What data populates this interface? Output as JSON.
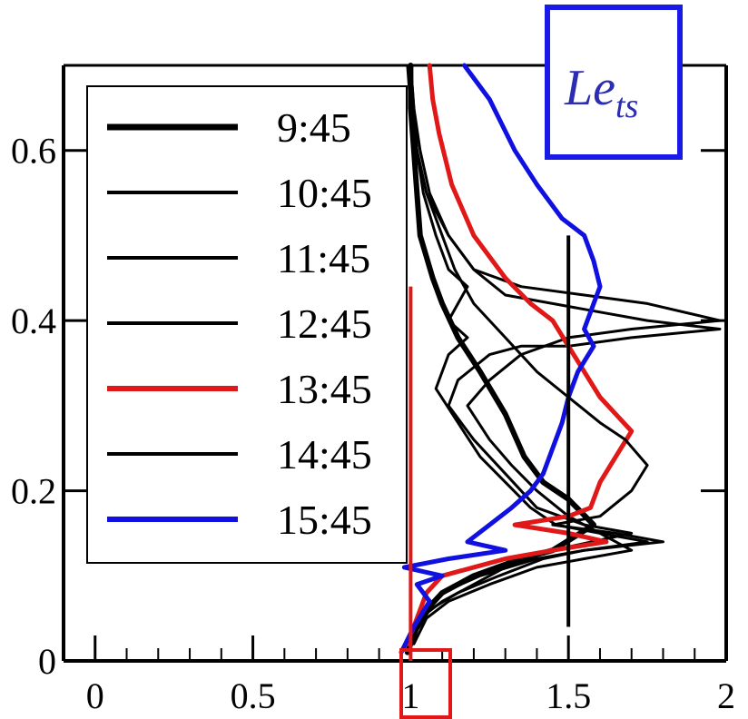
{
  "chart_data": {
    "type": "line",
    "title_main": "Le",
    "title_sub": "ts",
    "xlabel": "",
    "ylabel": "",
    "xlim": [
      -0.1,
      2
    ],
    "ylim": [
      0,
      0.7
    ],
    "x_ticks": [
      0,
      0.5,
      1,
      1.5,
      2
    ],
    "x_tick_labels": [
      "0",
      "0.5",
      "1",
      "1.5",
      "2"
    ],
    "y_ticks": [
      0,
      0.2,
      0.4,
      0.6
    ],
    "y_tick_labels": [
      "0",
      "0.2",
      "0.4",
      "0.6"
    ],
    "grid": false,
    "legend_position": "top-left",
    "colors": {
      "black": "#000000",
      "red": "#e01818",
      "blue": "#1010e0",
      "title_box": "#1a1ae6",
      "highlight_box": "#e01818"
    },
    "series": [
      {
        "name": "9:45",
        "color": "#000000",
        "width": 6,
        "points": [
          [
            1.0,
            0.7
          ],
          [
            1.0,
            0.65
          ],
          [
            1.01,
            0.6
          ],
          [
            1.02,
            0.55
          ],
          [
            1.03,
            0.5
          ],
          [
            1.07,
            0.45
          ],
          [
            1.1,
            0.42
          ],
          [
            1.15,
            0.38
          ],
          [
            1.22,
            0.34
          ],
          [
            1.3,
            0.29
          ],
          [
            1.36,
            0.24
          ],
          [
            1.42,
            0.21
          ],
          [
            1.5,
            0.19
          ],
          [
            1.58,
            0.16
          ],
          [
            1.45,
            0.13
          ],
          [
            1.35,
            0.12
          ],
          [
            1.2,
            0.1
          ],
          [
            1.1,
            0.08
          ],
          [
            1.05,
            0.06
          ],
          [
            1.02,
            0.04
          ],
          [
            1.0,
            0.02
          ],
          [
            0.99,
            0.01
          ]
        ]
      },
      {
        "name": "10:45",
        "color": "#000000",
        "width": 3,
        "points": [
          [
            0.99,
            0.7
          ],
          [
            1.0,
            0.65
          ],
          [
            1.02,
            0.6
          ],
          [
            1.05,
            0.55
          ],
          [
            1.12,
            0.5
          ],
          [
            1.2,
            0.46
          ],
          [
            1.3,
            0.43
          ],
          [
            1.45,
            0.42
          ],
          [
            1.6,
            0.41
          ],
          [
            1.75,
            0.4
          ],
          [
            1.98,
            0.39
          ],
          [
            1.7,
            0.38
          ],
          [
            1.5,
            0.37
          ],
          [
            1.35,
            0.37
          ],
          [
            1.25,
            0.36
          ],
          [
            1.15,
            0.33
          ],
          [
            1.12,
            0.3
          ],
          [
            1.2,
            0.26
          ],
          [
            1.3,
            0.22
          ],
          [
            1.4,
            0.18
          ],
          [
            1.55,
            0.16
          ],
          [
            1.7,
            0.15
          ],
          [
            1.45,
            0.13
          ],
          [
            1.3,
            0.11
          ],
          [
            1.2,
            0.09
          ],
          [
            1.1,
            0.07
          ],
          [
            1.03,
            0.05
          ],
          [
            1.0,
            0.02
          ]
        ]
      },
      {
        "name": "11:45",
        "color": "#000000",
        "width": 3,
        "points": [
          [
            1.0,
            0.7
          ],
          [
            1.01,
            0.65
          ],
          [
            1.03,
            0.6
          ],
          [
            1.06,
            0.55
          ],
          [
            1.12,
            0.5
          ],
          [
            1.2,
            0.46
          ],
          [
            1.35,
            0.44
          ],
          [
            1.55,
            0.43
          ],
          [
            1.75,
            0.42
          ],
          [
            1.98,
            0.4
          ],
          [
            1.7,
            0.39
          ],
          [
            1.5,
            0.38
          ],
          [
            1.35,
            0.36
          ],
          [
            1.25,
            0.33
          ],
          [
            1.18,
            0.3
          ],
          [
            1.25,
            0.26
          ],
          [
            1.32,
            0.23
          ],
          [
            1.4,
            0.2
          ],
          [
            1.5,
            0.17
          ],
          [
            1.6,
            0.15
          ],
          [
            1.7,
            0.13
          ],
          [
            1.55,
            0.12
          ],
          [
            1.4,
            0.11
          ],
          [
            1.25,
            0.09
          ],
          [
            1.12,
            0.07
          ],
          [
            1.05,
            0.05
          ],
          [
            1.01,
            0.02
          ]
        ]
      },
      {
        "name": "12:45",
        "color": "#000000",
        "width": 3,
        "points": [
          [
            1.0,
            0.7
          ],
          [
            1.01,
            0.65
          ],
          [
            1.02,
            0.6
          ],
          [
            1.04,
            0.55
          ],
          [
            1.08,
            0.5
          ],
          [
            1.12,
            0.46
          ],
          [
            1.18,
            0.44
          ],
          [
            1.15,
            0.42
          ],
          [
            1.12,
            0.4
          ],
          [
            1.18,
            0.38
          ],
          [
            1.12,
            0.36
          ],
          [
            1.08,
            0.32
          ],
          [
            1.15,
            0.28
          ],
          [
            1.22,
            0.24
          ],
          [
            1.3,
            0.21
          ],
          [
            1.38,
            0.18
          ],
          [
            1.46,
            0.16
          ],
          [
            1.6,
            0.15
          ],
          [
            1.75,
            0.14
          ],
          [
            1.55,
            0.13
          ],
          [
            1.4,
            0.12
          ],
          [
            1.22,
            0.1
          ],
          [
            1.1,
            0.08
          ],
          [
            1.04,
            0.06
          ],
          [
            1.0,
            0.03
          ]
        ]
      },
      {
        "name": "13:45",
        "color": "#e01818",
        "width": 5,
        "points": [
          [
            1.06,
            0.7
          ],
          [
            1.07,
            0.66
          ],
          [
            1.09,
            0.62
          ],
          [
            1.13,
            0.56
          ],
          [
            1.2,
            0.5
          ],
          [
            1.3,
            0.45
          ],
          [
            1.38,
            0.42
          ],
          [
            1.45,
            0.4
          ],
          [
            1.5,
            0.37
          ],
          [
            1.55,
            0.34
          ],
          [
            1.6,
            0.31
          ],
          [
            1.65,
            0.29
          ],
          [
            1.7,
            0.27
          ],
          [
            1.65,
            0.24
          ],
          [
            1.6,
            0.21
          ],
          [
            1.57,
            0.18
          ],
          [
            1.5,
            0.17
          ],
          [
            1.33,
            0.16
          ],
          [
            1.5,
            0.15
          ],
          [
            1.62,
            0.14
          ],
          [
            1.45,
            0.13
          ],
          [
            1.3,
            0.12
          ],
          [
            1.2,
            0.11
          ],
          [
            1.1,
            0.1
          ],
          [
            1.05,
            0.08
          ],
          [
            1.02,
            0.05
          ],
          [
            0.99,
            0.02
          ]
        ]
      },
      {
        "name": "14:45",
        "color": "#000000",
        "width": 3,
        "points": [
          [
            1.0,
            0.7
          ],
          [
            1.0,
            0.65
          ],
          [
            1.02,
            0.6
          ],
          [
            1.05,
            0.55
          ],
          [
            1.1,
            0.5
          ],
          [
            1.14,
            0.46
          ],
          [
            1.2,
            0.42
          ],
          [
            1.3,
            0.38
          ],
          [
            1.4,
            0.34
          ],
          [
            1.5,
            0.31
          ],
          [
            1.6,
            0.28
          ],
          [
            1.68,
            0.26
          ],
          [
            1.75,
            0.23
          ],
          [
            1.7,
            0.2
          ],
          [
            1.6,
            0.17
          ],
          [
            1.45,
            0.16
          ],
          [
            1.65,
            0.15
          ],
          [
            1.8,
            0.14
          ],
          [
            1.55,
            0.13
          ],
          [
            1.42,
            0.12
          ],
          [
            1.28,
            0.1
          ],
          [
            1.15,
            0.08
          ],
          [
            1.06,
            0.06
          ],
          [
            1.01,
            0.03
          ]
        ]
      },
      {
        "name": "15:45",
        "color": "#1010e0",
        "width": 5,
        "points": [
          [
            1.17,
            0.7
          ],
          [
            1.25,
            0.66
          ],
          [
            1.33,
            0.6
          ],
          [
            1.4,
            0.56
          ],
          [
            1.48,
            0.52
          ],
          [
            1.55,
            0.5
          ],
          [
            1.58,
            0.47
          ],
          [
            1.6,
            0.44
          ],
          [
            1.58,
            0.42
          ],
          [
            1.55,
            0.39
          ],
          [
            1.58,
            0.37
          ],
          [
            1.53,
            0.34
          ],
          [
            1.5,
            0.31
          ],
          [
            1.48,
            0.28
          ],
          [
            1.45,
            0.25
          ],
          [
            1.42,
            0.22
          ],
          [
            1.38,
            0.2
          ],
          [
            1.32,
            0.18
          ],
          [
            1.25,
            0.16
          ],
          [
            1.18,
            0.14
          ],
          [
            1.3,
            0.13
          ],
          [
            1.12,
            0.12
          ],
          [
            0.98,
            0.11
          ],
          [
            1.1,
            0.1
          ],
          [
            1.02,
            0.09
          ],
          [
            1.06,
            0.07
          ],
          [
            1.01,
            0.04
          ],
          [
            0.97,
            0.01
          ]
        ]
      }
    ],
    "reference_lines": [
      {
        "name": "red-reference-line",
        "color": "#e01818",
        "x": 1.0,
        "y_from": 0.0,
        "y_to": 0.44
      },
      {
        "name": "black-reference-line",
        "color": "#000000",
        "x": 1.5,
        "y_from": 0.04,
        "y_to": 0.5
      }
    ]
  }
}
